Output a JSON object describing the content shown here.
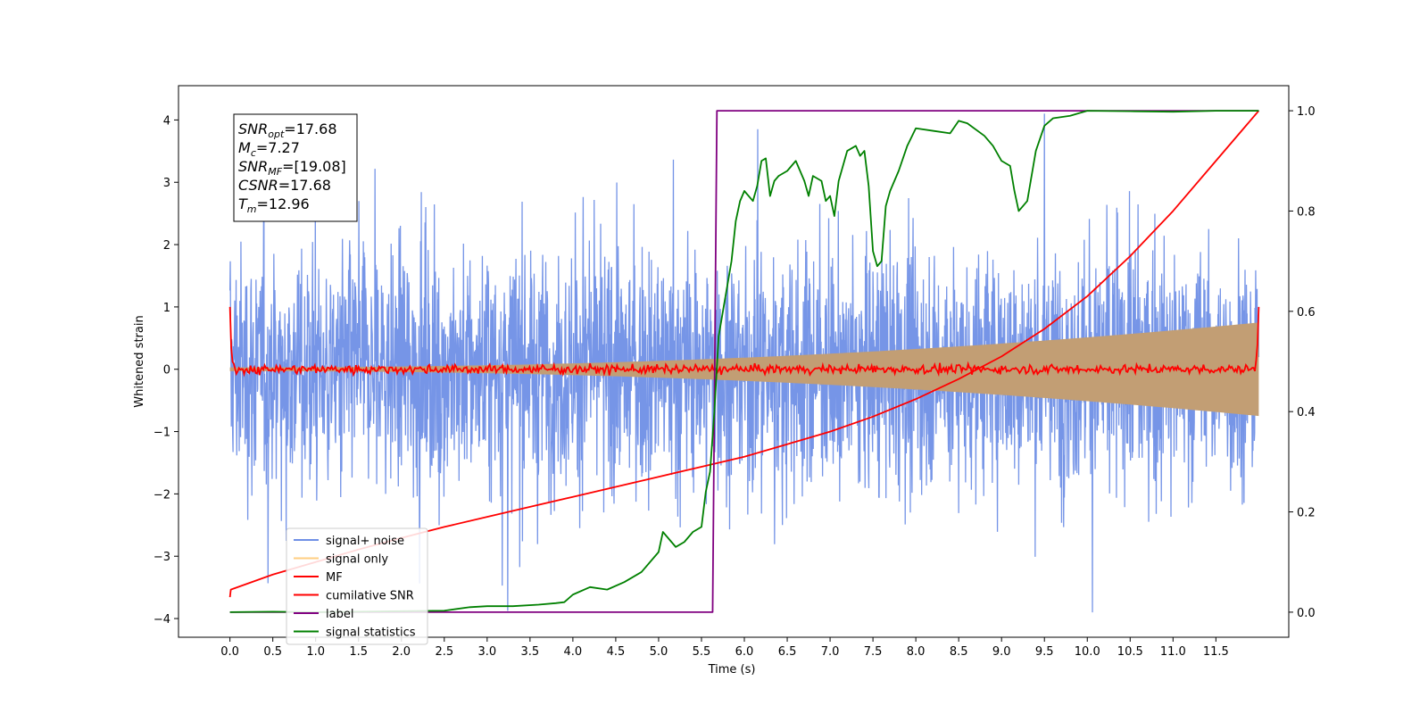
{
  "chart_data": {
    "type": "line",
    "xlabel": "Time (s)",
    "ylabel": "Whitened strain",
    "xlim": [
      -0.6,
      12.35
    ],
    "ylim_left": [
      -4.3,
      4.55
    ],
    "ylim_right": [
      -0.05,
      1.05
    ],
    "x_ticks": [
      0.0,
      0.5,
      1.0,
      1.5,
      2.0,
      2.5,
      3.0,
      3.5,
      4.0,
      4.5,
      5.0,
      5.5,
      6.0,
      6.5,
      7.0,
      7.5,
      8.0,
      8.5,
      9.0,
      9.5,
      10.0,
      10.5,
      11.0,
      11.5
    ],
    "x_tick_labels": [
      "0.0",
      "0.5",
      "1.0",
      "1.5",
      "2.0",
      "2.5",
      "3.0",
      "3.5",
      "4.0",
      "4.5",
      "5.0",
      "5.5",
      "6.0",
      "6.5",
      "7.0",
      "7.5",
      "8.0",
      "8.5",
      "9.0",
      "9.5",
      "10.0",
      "10.5",
      "11.0",
      "11.5"
    ],
    "y_left_ticks": [
      -4,
      -3,
      -2,
      -1,
      0,
      1,
      2,
      3,
      4
    ],
    "y_left_tick_labels": [
      "−4",
      "−3",
      "−2",
      "−1",
      "0",
      "1",
      "2",
      "3",
      "4"
    ],
    "y_right_ticks": [
      0.0,
      0.2,
      0.4,
      0.6,
      0.8,
      1.0
    ],
    "y_right_tick_labels": [
      "0.0",
      "0.2",
      "0.4",
      "0.6",
      "0.8",
      "1.0"
    ],
    "legend_position": "lower-left",
    "series": [
      {
        "name": "signal+ noise",
        "axis": "left",
        "color": "#6f8fe6",
        "style": "noise",
        "x_range": [
          0.0,
          12.0
        ],
        "approx_range": [
          -3.9,
          4.1
        ]
      },
      {
        "name": "signal only",
        "axis": "left",
        "color": "#ffc66b",
        "style": "chirp",
        "x_range": [
          0.0,
          12.0
        ],
        "amplitude_start": 0.03,
        "amplitude_end": 0.75
      },
      {
        "name": "MF",
        "axis": "left",
        "color": "#ff0000",
        "style": "mf",
        "x_range": [
          0.0,
          12.0
        ],
        "endpoints": [
          1.0,
          1.0
        ]
      },
      {
        "name": "cumilative SNR",
        "axis": "right",
        "color": "#ff0000",
        "x": [
          0.0,
          0.01,
          0.5,
          1.0,
          1.5,
          2.0,
          2.5,
          3.0,
          3.5,
          4.0,
          4.5,
          5.0,
          5.5,
          6.0,
          6.5,
          7.0,
          7.5,
          8.0,
          8.5,
          9.0,
          9.5,
          10.0,
          10.5,
          11.0,
          11.5,
          12.0
        ],
        "y": [
          0.03,
          0.045,
          0.075,
          0.1,
          0.125,
          0.148,
          0.17,
          0.19,
          0.21,
          0.23,
          0.25,
          0.27,
          0.29,
          0.31,
          0.335,
          0.36,
          0.39,
          0.425,
          0.465,
          0.51,
          0.565,
          0.63,
          0.71,
          0.8,
          0.9,
          1.0
        ]
      },
      {
        "name": "label",
        "axis": "right",
        "color": "#800080",
        "x": [
          0.0,
          5.63,
          5.68,
          12.0
        ],
        "y": [
          0.0,
          0.0,
          1.0,
          1.0
        ]
      },
      {
        "name": "signal statistics",
        "axis": "right",
        "color": "#008000",
        "x": [
          0.0,
          0.5,
          1.0,
          1.5,
          2.0,
          2.5,
          2.8,
          3.0,
          3.3,
          3.6,
          3.8,
          3.9,
          4.0,
          4.2,
          4.4,
          4.6,
          4.8,
          5.0,
          5.05,
          5.1,
          5.2,
          5.3,
          5.35,
          5.4,
          5.5,
          5.55,
          5.6,
          5.65,
          5.7,
          5.75,
          5.8,
          5.85,
          5.9,
          5.95,
          6.0,
          6.1,
          6.15,
          6.2,
          6.25,
          6.3,
          6.35,
          6.4,
          6.5,
          6.6,
          6.7,
          6.75,
          6.8,
          6.9,
          6.95,
          7.0,
          7.05,
          7.1,
          7.2,
          7.3,
          7.35,
          7.4,
          7.45,
          7.5,
          7.55,
          7.6,
          7.65,
          7.7,
          7.8,
          7.9,
          8.0,
          8.2,
          8.4,
          8.5,
          8.6,
          8.8,
          8.9,
          9.0,
          9.1,
          9.15,
          9.2,
          9.3,
          9.4,
          9.5,
          9.6,
          9.8,
          10.0,
          10.5,
          11.0,
          11.5,
          12.0
        ],
        "y": [
          0.0,
          0.001,
          0.0,
          0.001,
          0.002,
          0.003,
          0.01,
          0.012,
          0.012,
          0.015,
          0.018,
          0.02,
          0.035,
          0.05,
          0.045,
          0.06,
          0.08,
          0.12,
          0.16,
          0.15,
          0.13,
          0.14,
          0.15,
          0.16,
          0.17,
          0.24,
          0.28,
          0.4,
          0.55,
          0.6,
          0.65,
          0.7,
          0.78,
          0.82,
          0.84,
          0.82,
          0.85,
          0.9,
          0.905,
          0.83,
          0.86,
          0.87,
          0.88,
          0.9,
          0.86,
          0.83,
          0.87,
          0.86,
          0.82,
          0.83,
          0.79,
          0.86,
          0.92,
          0.93,
          0.91,
          0.92,
          0.85,
          0.72,
          0.69,
          0.7,
          0.81,
          0.84,
          0.88,
          0.93,
          0.965,
          0.96,
          0.955,
          0.98,
          0.975,
          0.95,
          0.93,
          0.9,
          0.89,
          0.84,
          0.8,
          0.82,
          0.92,
          0.97,
          0.985,
          0.99,
          1.0,
          0.999,
          0.998,
          1.0,
          1.0
        ]
      }
    ],
    "annotation": {
      "lines": [
        {
          "sym": "SNR",
          "sub": "opt",
          "value": "=17.68"
        },
        {
          "sym": "M",
          "sub": "c",
          "value": "=7.27"
        },
        {
          "sym": "SNR",
          "sub": "MF",
          "value": "=[19.08]"
        },
        {
          "sym": "CSNR",
          "sub": "",
          "value": "=17.68"
        },
        {
          "sym": "T",
          "sub": "m",
          "value": "=12.96"
        }
      ]
    }
  }
}
